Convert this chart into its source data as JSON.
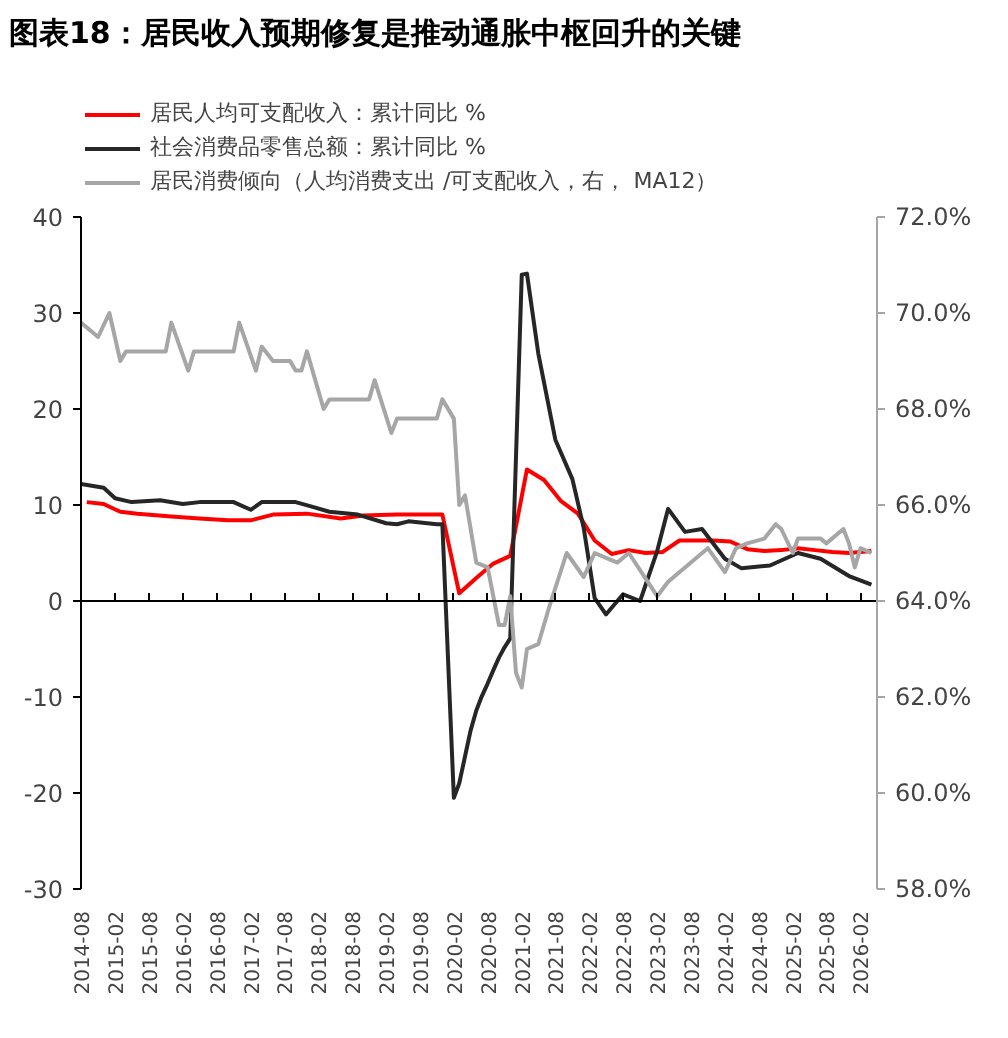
{
  "chart_data": {
    "type": "line",
    "title": "图表18：居民收入预期修复是推动通胀中枢回升的关键",
    "xlim": [
      "2014-08",
      "2026-05"
    ],
    "xticks": [
      "2014-08",
      "2015-02",
      "2015-08",
      "2016-02",
      "2016-08",
      "2017-02",
      "2017-08",
      "2018-02",
      "2018-08",
      "2019-02",
      "2019-08",
      "2020-02",
      "2020-08",
      "2021-02",
      "2021-08",
      "2022-02",
      "2022-08",
      "2023-02",
      "2023-08",
      "2024-02",
      "2024-08",
      "2025-02",
      "2025-08",
      "2026-02"
    ],
    "ylim": [
      -30,
      40
    ],
    "yticks": [
      -30,
      -20,
      -10,
      0,
      10,
      20,
      30,
      40
    ],
    "y2lim": [
      58,
      72
    ],
    "y2ticks": [
      {
        "value": 58,
        "label": "58.0%"
      },
      {
        "value": 60,
        "label": "60.0%"
      },
      {
        "value": 62,
        "label": "62.0%"
      },
      {
        "value": 64,
        "label": "64.0%"
      },
      {
        "value": 66,
        "label": "66.0%"
      },
      {
        "value": 68,
        "label": "68.0%"
      },
      {
        "value": 70,
        "label": "70.0%"
      },
      {
        "value": 72,
        "label": "72.0%"
      }
    ],
    "grid": false,
    "ref_lines": [
      {
        "axis": "y",
        "value": 0,
        "color": "#000000",
        "line_style": "solid"
      }
    ],
    "legend": "top",
    "marker": "none",
    "line_style": "solid",
    "series": [
      {
        "name": "居民人均可支配收入：累计同比 %",
        "color": "#ff0000",
        "x": [
          "2014-09",
          "2014-12",
          "2015-03",
          "2015-06",
          "2015-12",
          "2016-05",
          "2016-10",
          "2017-02",
          "2017-06",
          "2017-12",
          "2018-06",
          "2018-10",
          "2019-04",
          "2019-12",
          "2020-03",
          "2020-06",
          "2020-09",
          "2020-12",
          "2021-03",
          "2021-06",
          "2021-09",
          "2021-12",
          "2022-03",
          "2022-06",
          "2022-09",
          "2022-12",
          "2023-03",
          "2023-06",
          "2023-09",
          "2023-12",
          "2024-03",
          "2024-06",
          "2024-09",
          "2024-12",
          "2025-03",
          "2025-06",
          "2025-09",
          "2025-12",
          "2026-04"
        ],
        "values": [
          10.3,
          10.1,
          9.3,
          9.1,
          8.8,
          8.6,
          8.4,
          8.4,
          9.0,
          9.1,
          8.6,
          8.9,
          9.0,
          9.0,
          0.8,
          2.4,
          3.9,
          4.7,
          13.7,
          12.6,
          10.4,
          9.1,
          6.3,
          4.9,
          5.3,
          5.0,
          5.1,
          6.3,
          6.3,
          6.3,
          6.2,
          5.4,
          5.2,
          5.3,
          5.5,
          5.3,
          5.1,
          5.0,
          5.2
        ]
      },
      {
        "name": "社会消费品零售总额：累计同比 %",
        "color": "#262626",
        "x": [
          "2014-08",
          "2014-12",
          "2015-02",
          "2015-05",
          "2015-10",
          "2016-02",
          "2016-05",
          "2016-11",
          "2017-02",
          "2017-04",
          "2017-10",
          "2018-01",
          "2018-04",
          "2018-09",
          "2019-02",
          "2019-04",
          "2019-06",
          "2019-11",
          "2019-12",
          "2020-02",
          "2020-03",
          "2020-04",
          "2020-05",
          "2020-06",
          "2020-07",
          "2020-08",
          "2020-09",
          "2020-10",
          "2020-11",
          "2020-12",
          "2021-02",
          "2021-03",
          "2021-05",
          "2021-08",
          "2021-11",
          "2022-01",
          "2022-03",
          "2022-05",
          "2022-08",
          "2022-11",
          "2023-02",
          "2023-04",
          "2023-07",
          "2023-10",
          "2024-02",
          "2024-05",
          "2024-10",
          "2025-03",
          "2025-07",
          "2025-12",
          "2026-04"
        ],
        "values": [
          12.2,
          11.8,
          10.7,
          10.3,
          10.5,
          10.1,
          10.3,
          10.3,
          9.5,
          10.3,
          10.3,
          9.8,
          9.3,
          9.0,
          8.1,
          8.0,
          8.3,
          8.0,
          8.0,
          -20.5,
          -19.0,
          -16.2,
          -13.5,
          -11.4,
          -9.9,
          -8.6,
          -7.2,
          -5.9,
          -4.8,
          -3.9,
          34.0,
          34.1,
          25.8,
          16.8,
          12.7,
          7.6,
          0.3,
          -1.4,
          0.7,
          0.0,
          5.2,
          9.6,
          7.2,
          7.5,
          4.4,
          3.4,
          3.7,
          5.0,
          4.4,
          2.6,
          1.7
        ]
      },
      {
        "name": "居民消费倾向（人均消费支出 /可支配收入，右， MA12）",
        "color": "#a6a6a6",
        "axis": "y2",
        "x": [
          "2014-08",
          "2014-11",
          "2015-01",
          "2015-03",
          "2015-04",
          "2015-11",
          "2015-12",
          "2016-03",
          "2016-04",
          "2016-11",
          "2016-12",
          "2017-03",
          "2017-04",
          "2017-06",
          "2017-09",
          "2017-10",
          "2017-11",
          "2017-12",
          "2018-03",
          "2018-04",
          "2018-11",
          "2018-12",
          "2019-03",
          "2019-04",
          "2019-11",
          "2019-12",
          "2020-02",
          "2020-03",
          "2020-04",
          "2020-06",
          "2020-08",
          "2020-10",
          "2020-11",
          "2020-12",
          "2021-01",
          "2021-02",
          "2021-03",
          "2021-05",
          "2021-07",
          "2021-10",
          "2022-01",
          "2022-03",
          "2022-05",
          "2022-07",
          "2022-09",
          "2023-02",
          "2023-04",
          "2023-07",
          "2023-11",
          "2024-02",
          "2024-04",
          "2024-06",
          "2024-09",
          "2024-11",
          "2024-12",
          "2025-02",
          "2025-03",
          "2025-07",
          "2025-08",
          "2025-11",
          "2025-12",
          "2026-01",
          "2026-02",
          "2026-04"
        ],
        "values": [
          69.8,
          69.5,
          70.0,
          69.0,
          69.2,
          69.2,
          69.8,
          68.8,
          69.2,
          69.2,
          69.8,
          68.8,
          69.3,
          69.0,
          69.0,
          68.8,
          68.8,
          69.2,
          68.0,
          68.2,
          68.2,
          68.6,
          67.5,
          67.8,
          67.8,
          68.2,
          67.8,
          66.0,
          66.2,
          64.8,
          64.7,
          63.5,
          63.5,
          64.1,
          62.5,
          62.2,
          63.0,
          63.1,
          63.9,
          65.0,
          64.5,
          65.0,
          64.9,
          64.8,
          65.0,
          64.1,
          64.4,
          64.7,
          65.1,
          64.6,
          65.1,
          65.2,
          65.3,
          65.6,
          65.5,
          65.0,
          65.3,
          65.3,
          65.2,
          65.5,
          65.2,
          64.7,
          65.1,
          65.0
        ]
      }
    ]
  }
}
